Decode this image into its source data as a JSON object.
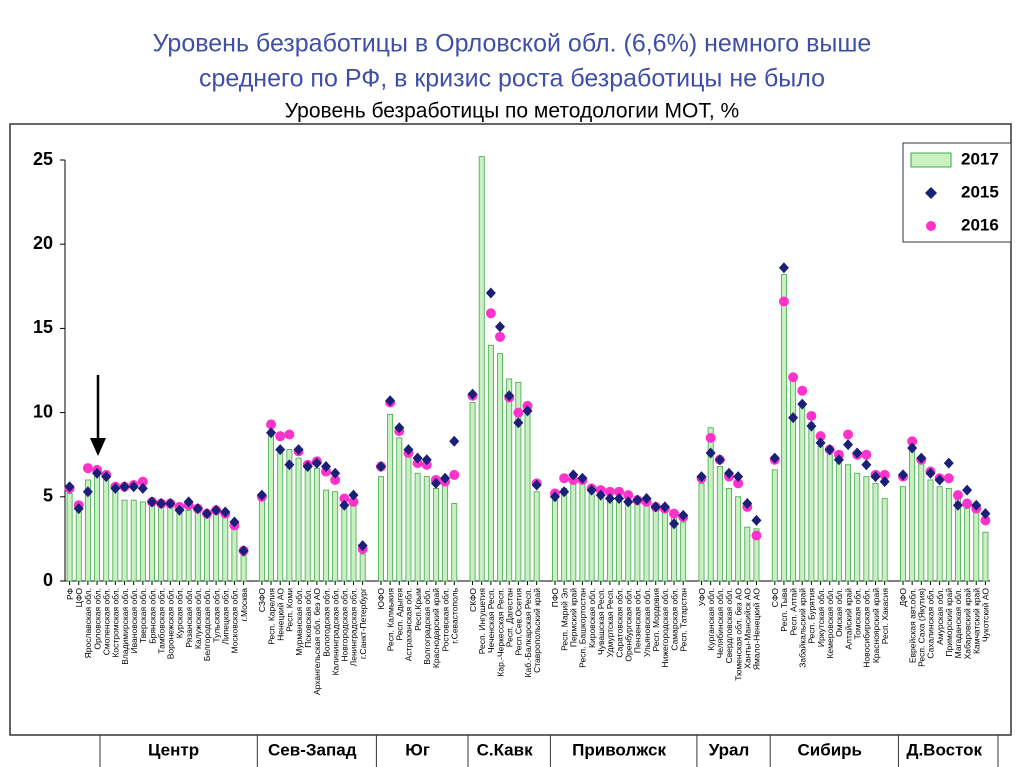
{
  "header": {
    "title": [
      "Уровень безработицы в Орловской обл. (6,6%) немного выше",
      "среднего по РФ, в кризис роста безработицы не было"
    ]
  },
  "chart_data": {
    "type": "bar",
    "title": "Уровень безработицы по методологии МОТ, %",
    "groups": [
      "Центр",
      "Сев-Запад",
      "Юг",
      "С.Кавк",
      "Приволжск",
      "Урал",
      "Сибирь",
      "Д.Восток"
    ],
    "categories": [
      "РФ",
      "ЦФО",
      "Ярославская обл.",
      "Орловская обл.",
      "Смоленская обл.",
      "Костромская обл.",
      "Владимирская обл.",
      "Ивановская обл.",
      "Тверская обл.",
      "Брянская обл.",
      "Тамбовская обл.",
      "Воронежская обл.",
      "Курская обл.",
      "Рязанская обл.",
      "Калужская обл.",
      "Белгородская обл.",
      "Тульская обл.",
      "Липецкая обл.",
      "Московская обл.",
      "г.Москва",
      null,
      "СЗФО",
      "Респ. Карелия",
      "Ненецкий АО",
      "Респ. Коми",
      "Мурманская обл.",
      "Псковская обл.",
      "Архангельская обл. без АО",
      "Вологодская обл.",
      "Калининградская обл.",
      "Новгородская обл.",
      "Ленинградская обл.",
      "г.Санкт-Петербург",
      null,
      "ЮФО",
      "Респ. Калмыкия",
      "Респ. Адыгея",
      "Астраханская обл.",
      "Респ.Крым",
      "Волгоградская обл.",
      "Краснодарский край",
      "Ростовская обл.",
      "г.Севастополь",
      null,
      "СКФО",
      "Респ. Ингушетия",
      "Чеченская Респ.",
      "Кар.-Черкесская Респ.",
      "Респ. Дагестан",
      "Респ.Сев.Осетия",
      "Каб.-Балкарская Респ.",
      "Ставропольский край",
      null,
      "ПФО",
      "Респ. Марий Эл",
      "Пермский край",
      "Респ. Башкортостан",
      "Кировская обл.",
      "Чувашская Респ.",
      "Удмуртская Респ.",
      "Саратовская обл.",
      "Оренбургская обл.",
      "Пензенская обл.",
      "Ульяновская обл.",
      "Респ. Мордовия",
      "Нижегородская обл.",
      "Самарская обл.",
      "Респ. Татарстан",
      null,
      "УФО",
      "Курганская обл.",
      "Челябинская обл.",
      "Свердловская обл.",
      "Тюменская обл. без АО",
      "Ханты-Мансийск АО",
      "Ямало-Ненецкий АО",
      null,
      "СФО",
      "Респ. Тыва",
      "Респ. Алтай",
      "Забайкальский край",
      "Респ. Бурятия",
      "Иркутская обл.",
      "Кемеровская обл.",
      "Омская обл.",
      "Алтайский край",
      "Томская обл.",
      "Новосибирская обл.",
      "Красноярский край",
      "Респ. Хакасия",
      null,
      "ДФО",
      "Еврейская авт.обл.",
      "Респ. Саха (Якутия)",
      "Сахалинская обл.",
      "Амурская обл.",
      "Приморский край",
      "Магаданская обл.",
      "Хабаровский край",
      "Камчатский край",
      "Чукотский АО"
    ],
    "series": [
      {
        "name": "2017",
        "color": "#c8f0c0",
        "values": [
          5.2,
          4.1,
          6.0,
          6.6,
          6.1,
          5.4,
          4.8,
          4.8,
          4.7,
          4.6,
          4.5,
          4.5,
          4.3,
          4.2,
          4.1,
          4.0,
          4.0,
          3.8,
          3.2,
          1.5,
          null,
          5.0,
          8.8,
          7.6,
          7.8,
          7.3,
          6.6,
          6.7,
          5.4,
          5.3,
          4.6,
          4.7,
          1.6,
          null,
          6.2,
          9.9,
          8.5,
          7.5,
          6.4,
          6.2,
          5.5,
          5.9,
          4.6,
          null,
          10.6,
          25.2,
          14.0,
          13.5,
          12.0,
          11.8,
          10.2,
          5.3,
          null,
          4.8,
          5.5,
          5.9,
          5.8,
          5.4,
          5.2,
          5.0,
          4.8,
          4.7,
          4.6,
          4.5,
          4.3,
          4.2,
          3.8,
          3.5,
          null,
          5.8,
          9.1,
          6.8,
          5.5,
          5.0,
          3.2,
          3.1,
          null,
          6.6,
          18.2,
          12.2,
          10.5,
          9.4,
          8.0,
          7.5,
          7.0,
          6.9,
          6.4,
          6.2,
          5.8,
          4.9,
          null,
          5.6,
          8.0,
          7.1,
          6.0,
          5.6,
          5.5,
          4.9,
          4.3,
          4.2,
          2.9
        ]
      },
      {
        "name": "2015",
        "color": "#1a1f78",
        "values": [
          5.6,
          4.3,
          5.3,
          6.4,
          6.2,
          5.5,
          5.6,
          5.6,
          5.5,
          4.7,
          4.6,
          4.6,
          4.2,
          4.7,
          4.3,
          4.0,
          4.2,
          4.1,
          3.5,
          1.8,
          null,
          5.1,
          8.8,
          7.8,
          6.9,
          7.8,
          6.8,
          7.0,
          6.8,
          6.4,
          4.5,
          5.1,
          2.1,
          null,
          6.8,
          10.7,
          9.1,
          7.8,
          7.3,
          7.2,
          5.8,
          6.1,
          8.3,
          null,
          11.1,
          null,
          17.1,
          15.1,
          11.0,
          9.4,
          10.1,
          5.7,
          null,
          5.0,
          5.3,
          6.3,
          6.1,
          5.4,
          5.1,
          4.9,
          4.9,
          4.7,
          4.8,
          4.9,
          4.4,
          4.4,
          3.4,
          3.9,
          null,
          6.2,
          7.6,
          7.2,
          6.4,
          6.2,
          4.6,
          3.6,
          null,
          7.3,
          18.6,
          9.7,
          10.5,
          9.2,
          8.2,
          7.8,
          7.2,
          8.1,
          7.6,
          6.9,
          6.2,
          5.9,
          null,
          6.3,
          7.9,
          7.3,
          6.4,
          6.0,
          7.0,
          4.5,
          5.4,
          4.5,
          4.0
        ]
      },
      {
        "name": "2016",
        "color": "#ff33cc",
        "values": [
          5.5,
          4.5,
          6.7,
          6.6,
          6.3,
          5.6,
          5.6,
          5.7,
          5.9,
          4.7,
          4.6,
          4.6,
          4.4,
          4.5,
          4.3,
          4.0,
          4.2,
          4.0,
          3.3,
          1.8,
          null,
          5.0,
          9.3,
          8.6,
          8.7,
          7.7,
          6.9,
          7.1,
          6.5,
          6.0,
          4.9,
          4.7,
          1.9,
          null,
          6.8,
          10.6,
          8.9,
          7.6,
          7.0,
          6.9,
          6.0,
          5.9,
          6.3,
          null,
          11.0,
          null,
          15.9,
          14.5,
          10.9,
          10.0,
          10.4,
          5.8,
          null,
          5.2,
          6.1,
          6.0,
          6.0,
          5.5,
          5.4,
          5.3,
          5.3,
          5.1,
          4.8,
          4.7,
          4.4,
          4.3,
          4.0,
          3.8,
          null,
          6.1,
          8.5,
          7.2,
          6.2,
          5.8,
          4.4,
          2.7,
          null,
          7.2,
          16.6,
          12.1,
          11.3,
          9.8,
          8.6,
          7.8,
          7.5,
          8.7,
          7.5,
          7.5,
          6.3,
          6.3,
          null,
          6.2,
          8.3,
          7.2,
          6.5,
          6.1,
          6.1,
          5.1,
          4.6,
          4.3,
          3.6
        ]
      }
    ],
    "ylim": [
      0,
      25
    ],
    "yticks": [
      0,
      5,
      10,
      15,
      20,
      25
    ],
    "legend": "upper right"
  }
}
